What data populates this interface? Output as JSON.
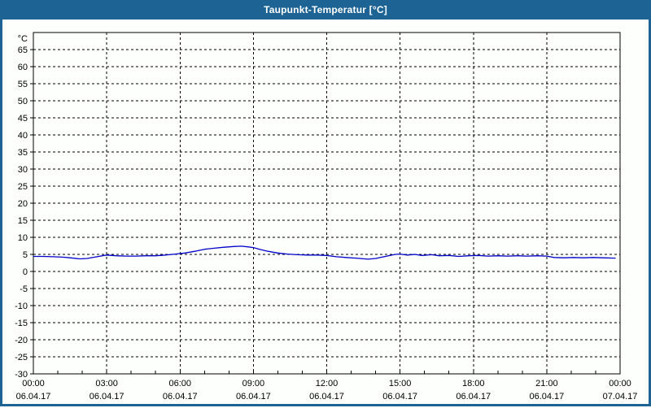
{
  "window": {
    "title": "Taupunkt-Temperatur [°C]"
  },
  "colors": {
    "titlebar_bg": "#1d6394",
    "titlebar_text": "#ffffff",
    "frame_border": "#1d6394",
    "content_bg": "#fcfffc",
    "plot_bg": "#fdfffd",
    "axis": "#000000",
    "grid": "#000000",
    "label": "#000000",
    "series": "#0000c8"
  },
  "chart_data": {
    "type": "line",
    "title": "Taupunkt-Temperatur [°C]",
    "y_unit_label": "°C",
    "ylim": [
      -30,
      70
    ],
    "y_ticks": [
      65,
      60,
      55,
      50,
      45,
      40,
      35,
      30,
      25,
      20,
      15,
      10,
      5,
      0,
      -5,
      -10,
      -15,
      -20,
      -25,
      -30
    ],
    "grid_style": "dashed",
    "legend": "none",
    "x_hours_range": [
      0,
      24
    ],
    "x_minor_step_hours": 1,
    "x_ticks": [
      {
        "hour": 0,
        "time": "00:00",
        "date": "06.04.17"
      },
      {
        "hour": 3,
        "time": "03:00",
        "date": "06.04.17"
      },
      {
        "hour": 6,
        "time": "06:00",
        "date": "06.04.17"
      },
      {
        "hour": 9,
        "time": "09:00",
        "date": "06.04.17"
      },
      {
        "hour": 12,
        "time": "12:00",
        "date": "06.04.17"
      },
      {
        "hour": 15,
        "time": "15:00",
        "date": "06.04.17"
      },
      {
        "hour": 18,
        "time": "18:00",
        "date": "06.04.17"
      },
      {
        "hour": 21,
        "time": "21:00",
        "date": "06.04.17"
      },
      {
        "hour": 24,
        "time": "00:00",
        "date": "07.04.17"
      }
    ],
    "series": [
      {
        "name": "Taupunkt-Temperatur [°C]",
        "color": "#0000c8",
        "points": [
          [
            0.0,
            4.4
          ],
          [
            0.4,
            4.4
          ],
          [
            0.8,
            4.3
          ],
          [
            1.2,
            4.2
          ],
          [
            1.5,
            4.0
          ],
          [
            1.9,
            3.7
          ],
          [
            2.2,
            3.8
          ],
          [
            2.6,
            4.3
          ],
          [
            3.0,
            4.8
          ],
          [
            3.4,
            4.6
          ],
          [
            3.8,
            4.5
          ],
          [
            4.2,
            4.5
          ],
          [
            4.6,
            4.6
          ],
          [
            5.0,
            4.6
          ],
          [
            5.4,
            4.8
          ],
          [
            5.8,
            5.1
          ],
          [
            6.2,
            5.4
          ],
          [
            6.6,
            5.9
          ],
          [
            7.0,
            6.5
          ],
          [
            7.4,
            6.8
          ],
          [
            7.8,
            7.1
          ],
          [
            8.2,
            7.3
          ],
          [
            8.5,
            7.4
          ],
          [
            8.8,
            7.2
          ],
          [
            9.0,
            7.0
          ],
          [
            9.3,
            6.4
          ],
          [
            9.6,
            5.9
          ],
          [
            10.0,
            5.4
          ],
          [
            10.4,
            5.1
          ],
          [
            10.8,
            4.9
          ],
          [
            11.2,
            4.8
          ],
          [
            11.6,
            4.8
          ],
          [
            12.0,
            4.7
          ],
          [
            12.4,
            4.3
          ],
          [
            12.8,
            4.1
          ],
          [
            13.2,
            3.9
          ],
          [
            13.7,
            3.6
          ],
          [
            14.0,
            3.8
          ],
          [
            14.4,
            4.4
          ],
          [
            14.8,
            5.0
          ],
          [
            15.0,
            5.1
          ],
          [
            15.3,
            4.8
          ],
          [
            15.6,
            5.0
          ],
          [
            15.9,
            4.7
          ],
          [
            16.3,
            4.9
          ],
          [
            16.6,
            4.6
          ],
          [
            17.0,
            4.7
          ],
          [
            17.4,
            4.4
          ],
          [
            17.8,
            4.6
          ],
          [
            18.2,
            4.7
          ],
          [
            18.6,
            4.5
          ],
          [
            19.0,
            4.6
          ],
          [
            19.4,
            4.5
          ],
          [
            19.8,
            4.6
          ],
          [
            20.2,
            4.5
          ],
          [
            20.6,
            4.6
          ],
          [
            21.0,
            4.5
          ],
          [
            21.3,
            4.1
          ],
          [
            21.7,
            4.0
          ],
          [
            22.1,
            4.1
          ],
          [
            22.5,
            4.0
          ],
          [
            22.9,
            4.1
          ],
          [
            23.3,
            4.0
          ],
          [
            23.8,
            3.9
          ]
        ]
      }
    ]
  }
}
